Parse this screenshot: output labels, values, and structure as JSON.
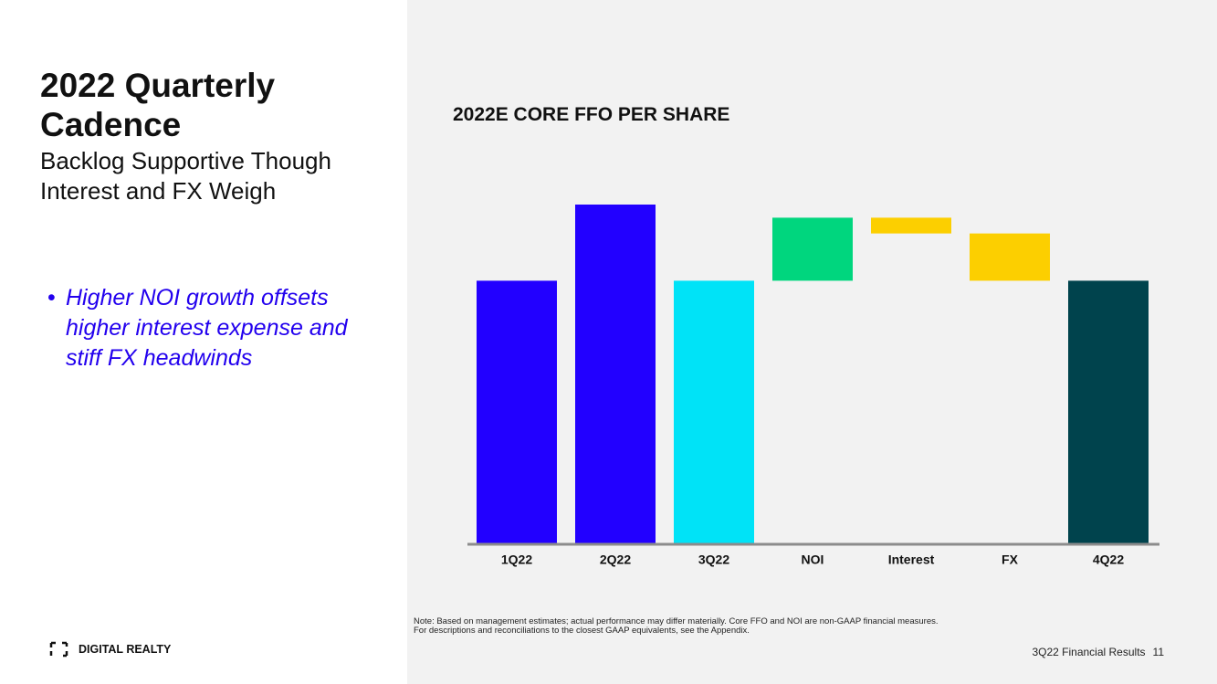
{
  "title": "2022 Quarterly Cadence",
  "subtitle": "Backlog Supportive Though Interest and FX Weigh",
  "bullet": "Higher NOI growth offsets higher interest expense and stiff FX headwinds",
  "logo": "DIGITAL REALTY",
  "note": [
    "Note: Based on management estimates; actual performance may differ materially.  Core FFO and NOI are non-GAAP financial measures.",
    "For descriptions and reconciliations to the closest GAAP equivalents, see the Appendix."
  ],
  "footer": "3Q22 Financial Results",
  "page_number": "11",
  "chart_data": {
    "type": "waterfall",
    "title": "2022E CORE FFO PER SHARE",
    "categories": [
      "1Q22",
      "2Q22",
      "3Q22",
      "NOI",
      "Interest",
      "FX",
      "4Q22"
    ],
    "values": [
      100,
      129,
      100,
      24,
      -6,
      -18,
      100
    ],
    "measures": [
      "absolute",
      "absolute",
      "absolute",
      "relative",
      "relative",
      "relative",
      "absolute"
    ],
    "colors": [
      "#2200ff",
      "#2200ff",
      "#00e3f7",
      "#00d67e",
      "#fccf00",
      "#fccf00",
      "#00434d"
    ]
  }
}
